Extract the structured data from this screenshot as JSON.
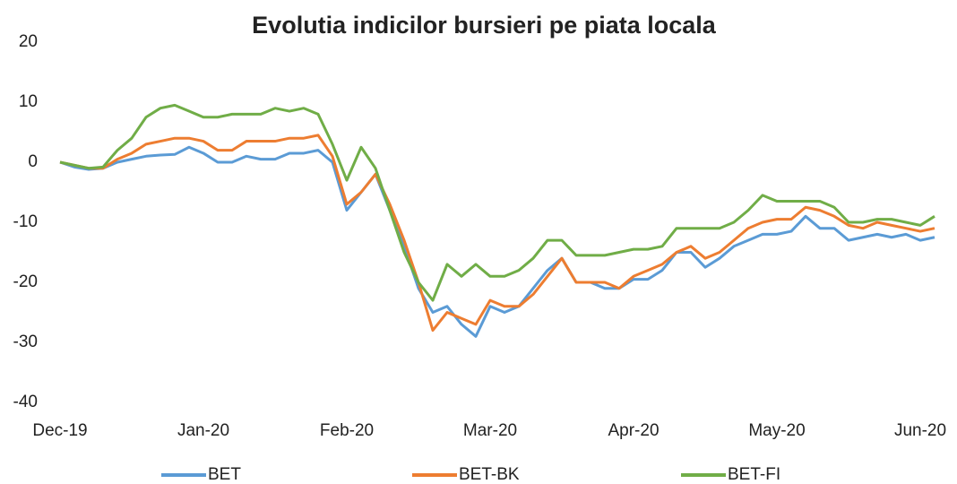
{
  "chart_data": {
    "type": "line",
    "title": "Evolutia indicilor bursieri pe piata locala",
    "categories": [
      "Dec-19",
      null,
      null,
      null,
      null,
      null,
      null,
      null,
      null,
      null,
      "Jan-20",
      null,
      null,
      null,
      null,
      null,
      null,
      null,
      null,
      null,
      "Feb-20",
      null,
      null,
      null,
      null,
      null,
      null,
      null,
      null,
      null,
      "Mar-20",
      null,
      null,
      null,
      null,
      null,
      null,
      null,
      null,
      null,
      "Apr-20",
      null,
      null,
      null,
      null,
      null,
      null,
      null,
      null,
      null,
      "May-20",
      null,
      null,
      null,
      null,
      null,
      null,
      null,
      null,
      null,
      "Jun-20",
      null
    ],
    "series": [
      {
        "name": "BET",
        "color": "#5b9bd5",
        "values": [
          0,
          -0.8,
          -1.2,
          -1,
          0,
          0.5,
          1,
          1.2,
          1.3,
          2.5,
          1.5,
          0,
          0,
          1,
          0.5,
          0.5,
          1.5,
          1.5,
          2,
          0,
          -8,
          -5,
          -2,
          -8,
          -14,
          -21,
          -25,
          -24,
          -27,
          -29,
          -24,
          -25,
          -24,
          -21,
          -18,
          -16,
          -20,
          -20,
          -21,
          -21,
          -19.5,
          -19.5,
          -18,
          -15,
          -15,
          -17.5,
          -16,
          -14,
          -13,
          -12,
          -12,
          -11.5,
          -9,
          -11,
          -11,
          -13,
          -12.5,
          -12,
          -12.5,
          -12,
          -13,
          -12.5
        ]
      },
      {
        "name": "BET-BK",
        "color": "#ed7d31",
        "values": [
          0,
          -0.5,
          -1,
          -1,
          0.5,
          1.5,
          3,
          3.5,
          4,
          4,
          3.5,
          2,
          2,
          3.5,
          3.5,
          3.5,
          4,
          4,
          4.5,
          1,
          -7,
          -5,
          -2,
          -7,
          -13,
          -20,
          -28,
          -25,
          -26,
          -27,
          -23,
          -24,
          -24,
          -22,
          -19,
          -16,
          -20,
          -20,
          -20,
          -21,
          -19,
          -18,
          -17,
          -15,
          -14,
          -16,
          -15,
          -13,
          -11,
          -10,
          -9.5,
          -9.5,
          -7.5,
          -8,
          -9,
          -10.5,
          -11,
          -10,
          -10.5,
          -11,
          -11.5,
          -11
        ]
      },
      {
        "name": "BET-FI",
        "color": "#70ad47",
        "values": [
          0,
          -0.5,
          -1,
          -0.8,
          2,
          4,
          7.5,
          9,
          9.5,
          8.5,
          7.5,
          7.5,
          8,
          8,
          8,
          9,
          8.5,
          9,
          8,
          3,
          -3,
          2.5,
          -1,
          -8,
          -15,
          -20,
          -23,
          -17,
          -19,
          -17,
          -19,
          -19,
          -18,
          -16,
          -13,
          -13,
          -15.5,
          -15.5,
          -15.5,
          -15,
          -14.5,
          -14.5,
          -14,
          -11,
          -11,
          -11,
          -11,
          -10,
          -8,
          -5.5,
          -6.5,
          -6.5,
          -6.5,
          -6.5,
          -7.5,
          -10,
          -10,
          -9.5,
          -9.5,
          -10,
          -10.5,
          -9
        ]
      }
    ],
    "ylim": [
      -40,
      20
    ],
    "yticks": [
      -40,
      -30,
      -20,
      -10,
      0,
      10,
      20
    ],
    "grid": false,
    "legend": "bottom"
  }
}
